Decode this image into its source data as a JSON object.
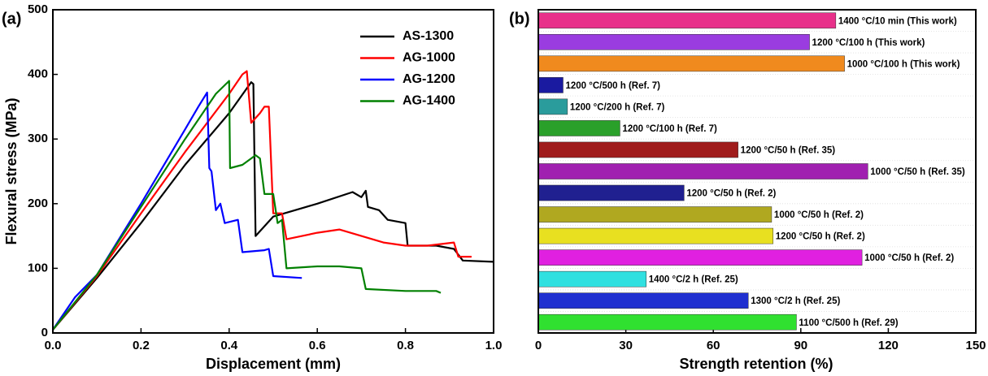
{
  "chart_data": [
    {
      "type": "line",
      "panel_label": "(a)",
      "x_label": "Displacement (mm)",
      "y_label": "Flexural stress (MPa)",
      "xlim": [
        0,
        1.0
      ],
      "xticks": [
        {
          "value": 0,
          "label": "0.0"
        },
        0.2,
        0.4,
        0.6,
        0.8,
        {
          "value": 1.0,
          "label": "1.0"
        }
      ],
      "ylim": [
        0,
        500
      ],
      "yticks": [
        0,
        100,
        200,
        300,
        400,
        500
      ],
      "legend": "upper-right",
      "series": [
        {
          "name": "AS-1300",
          "color": "#000000",
          "x": [
            0,
            0.1,
            0.2,
            0.3,
            0.4,
            0.45,
            0.455,
            0.46,
            0.5,
            0.6,
            0.68,
            0.7,
            0.71,
            0.715,
            0.74,
            0.76,
            0.8,
            0.805,
            0.87,
            0.91,
            0.93,
            1.0
          ],
          "values": [
            5,
            85,
            170,
            260,
            340,
            388,
            385,
            150,
            180,
            200,
            218,
            210,
            220,
            195,
            190,
            175,
            170,
            135,
            135,
            130,
            112,
            110
          ]
        },
        {
          "name": "AG-1000",
          "color": "#ff0000",
          "x": [
            0,
            0.1,
            0.2,
            0.3,
            0.4,
            0.43,
            0.44,
            0.45,
            0.47,
            0.48,
            0.49,
            0.5,
            0.52,
            0.53,
            0.6,
            0.65,
            0.7,
            0.75,
            0.8,
            0.85,
            0.91,
            0.92,
            0.95
          ],
          "values": [
            5,
            88,
            185,
            280,
            370,
            400,
            405,
            325,
            340,
            350,
            350,
            185,
            185,
            145,
            155,
            160,
            150,
            140,
            135,
            135,
            140,
            118,
            118
          ]
        },
        {
          "name": "AG-1200",
          "color": "#0000ff",
          "x": [
            0,
            0.05,
            0.1,
            0.2,
            0.3,
            0.33,
            0.35,
            0.355,
            0.36,
            0.37,
            0.38,
            0.39,
            0.42,
            0.43,
            0.48,
            0.49,
            0.5,
            0.565
          ],
          "values": [
            5,
            55,
            90,
            200,
            315,
            350,
            372,
            255,
            250,
            190,
            200,
            170,
            175,
            125,
            128,
            130,
            88,
            85
          ]
        },
        {
          "name": "AG-1400",
          "color": "#008000",
          "x": [
            0,
            0.1,
            0.2,
            0.3,
            0.37,
            0.4,
            0.402,
            0.43,
            0.45,
            0.46,
            0.47,
            0.48,
            0.5,
            0.51,
            0.52,
            0.53,
            0.6,
            0.65,
            0.7,
            0.71,
            0.8,
            0.87,
            0.88
          ],
          "values": [
            5,
            90,
            195,
            300,
            370,
            390,
            255,
            260,
            270,
            275,
            270,
            215,
            215,
            170,
            175,
            100,
            103,
            103,
            100,
            68,
            65,
            65,
            62
          ]
        }
      ]
    },
    {
      "type": "hbar",
      "panel_label": "(b)",
      "x_label": "Strength retention (%)",
      "xlim": [
        0,
        150
      ],
      "xticks": [
        0,
        30,
        60,
        90,
        120,
        150
      ],
      "grid": true,
      "categories": [
        "1400 °C/10 min (This work)",
        "1200 °C/100 h (This work)",
        "1000 °C/100 h (This work)",
        "1200 °C/500 h (Ref. 7)",
        "1200 °C/200 h (Ref. 7)",
        "1200 °C/100 h (Ref. 7)",
        "1200 °C/50 h (Ref. 35)",
        "1000 °C/50 h (Ref. 35)",
        "1200 °C/50 h (Ref. 2)",
        "1000 °C/50 h (Ref. 2)",
        "1200 °C/50 h (Ref. 2)",
        "1000 °C/50 h (Ref. 2)",
        "1400 °C/2 h (Ref. 25)",
        "1300 °C/2 h (Ref. 25)",
        "1100 °C/500 h (Ref. 29)"
      ],
      "values": [
        102,
        93,
        105,
        8.5,
        10,
        28,
        68.5,
        113,
        50,
        80,
        80.5,
        111,
        37,
        72,
        88.5
      ],
      "colors": [
        "#e8308a",
        "#9a3ce0",
        "#f08a1e",
        "#1a1aa0",
        "#2a9c9c",
        "#2aa02a",
        "#a01c1c",
        "#a020b0",
        "#202090",
        "#b0a820",
        "#e8e020",
        "#e020e0",
        "#30e0e0",
        "#2030d0",
        "#30e030"
      ]
    }
  ]
}
